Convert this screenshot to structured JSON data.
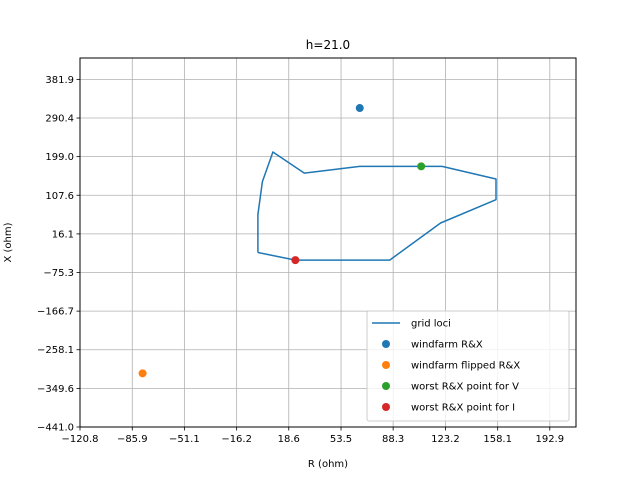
{
  "chart_data": {
    "type": "line",
    "title": "h=21.0",
    "xlabel": "R (ohm)",
    "ylabel": "X (ohm)",
    "xlim": [
      -120.8,
      210.4
    ],
    "ylim": [
      -441.0,
      432.5
    ],
    "xticks": [
      -120.8,
      -85.9,
      -51.1,
      -16.2,
      18.6,
      53.5,
      88.3,
      123.2,
      158.1,
      192.9
    ],
    "xtick_labels": [
      "−120.8",
      "−85.9",
      "−51.1",
      "−16.2",
      "18.6",
      "53.5",
      "88.3",
      "123.2",
      "158.1",
      "192.9"
    ],
    "yticks": [
      -441.0,
      -349.6,
      -258.1,
      -166.7,
      -75.3,
      16.1,
      107.6,
      199.0,
      290.4,
      381.9
    ],
    "ytick_labels": [
      "−441.0",
      "−349.6",
      "−258.1",
      "−166.7",
      "−75.3",
      "16.1",
      "107.6",
      "199.0",
      "290.4",
      "381.9"
    ],
    "grid": true,
    "legend_position": "lower-right",
    "series": [
      {
        "name": "grid loci",
        "kind": "line",
        "color": "#1f77b4",
        "x": [
          -2.0,
          -2.0,
          1.0,
          8.0,
          29.0,
          66.0,
          121.0,
          157.0,
          157.0,
          120.0,
          86.0,
          23.0,
          -2.0
        ],
        "y": [
          -28.0,
          62.0,
          140.0,
          210.0,
          160.0,
          176.0,
          176.0,
          146.0,
          97.0,
          42.0,
          -46.0,
          -46.0,
          -28.0
        ]
      },
      {
        "name": "windfarm R&X",
        "kind": "scatter",
        "color": "#1f77b4",
        "x": [
          66.0
        ],
        "y": [
          314.0
        ]
      },
      {
        "name": "windfarm flipped R&X",
        "kind": "scatter",
        "color": "#ff7f0e",
        "x": [
          -79.0
        ],
        "y": [
          -314.0
        ]
      },
      {
        "name": "worst R&X point for V",
        "kind": "scatter",
        "color": "#2ca02c",
        "x": [
          107.0
        ],
        "y": [
          176.0
        ]
      },
      {
        "name": "worst R&X point for I",
        "kind": "scatter",
        "color": "#d62728",
        "x": [
          23.0
        ],
        "y": [
          -46.0
        ]
      }
    ]
  }
}
